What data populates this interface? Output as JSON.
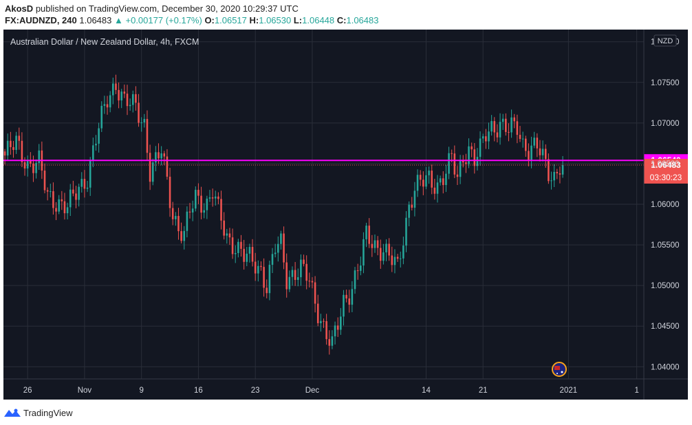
{
  "header": {
    "author": "AkosD",
    "published": "published on TradingView.com, December 30, 2020 10:29:37 UTC",
    "symbol": "FX:AUDNZD, 240",
    "last": "1.06483",
    "change_arrow": "▲",
    "change": "+0.00177 (+0.17%)",
    "o_label": "O:",
    "o": "1.06517",
    "h_label": "H:",
    "h": "1.06530",
    "l_label": "L:",
    "l": "1.06448",
    "c_label": "C:",
    "c": "1.06483"
  },
  "footer": {
    "brand": "TradingView",
    "logo_icon": "tradingview-logo-icon"
  },
  "chart_data": {
    "type": "candlestick",
    "title": "Australian Dollar / New Zealand Dollar, 4h, FXCM",
    "currency_badge": "NZD",
    "ylim": [
      1.0385,
      1.0815
    ],
    "y_ticks": [
      "1.04000",
      "1.04500",
      "1.05000",
      "1.05500",
      "1.06000",
      "1.06500",
      "1.07000",
      "1.07500",
      "1.08000"
    ],
    "x_ticks": [
      {
        "label": "26",
        "idx": 8
      },
      {
        "label": "Nov",
        "idx": 28
      },
      {
        "label": "9",
        "idx": 48
      },
      {
        "label": "16",
        "idx": 68
      },
      {
        "label": "23",
        "idx": 88
      },
      {
        "label": "Dec",
        "idx": 108
      },
      {
        "label": "14",
        "idx": 148
      },
      {
        "label": "21",
        "idx": 168
      },
      {
        "label": "2021",
        "idx": 198
      },
      {
        "label": "1",
        "idx": 222
      }
    ],
    "horizontal_line": {
      "value": 1.0654,
      "label": "1.06540",
      "color": "#ff00ff"
    },
    "current_price": {
      "value": 1.06483,
      "label": "1.06483",
      "countdown": "03:30:23"
    },
    "visible_slots": 225,
    "colors": {
      "up": "#26a69a",
      "down": "#ef5350",
      "background": "#131722",
      "grid": "#2a2e39",
      "axis_text": "#d1d4dc"
    },
    "path": [
      [
        0,
        1.066
      ],
      [
        4,
        1.0675
      ],
      [
        8,
        1.065
      ],
      [
        12,
        1.065
      ],
      [
        15,
        1.061
      ],
      [
        18,
        1.0605
      ],
      [
        22,
        1.0595
      ],
      [
        26,
        1.062
      ],
      [
        29,
        1.0635
      ],
      [
        32,
        1.068
      ],
      [
        36,
        1.073
      ],
      [
        39,
        1.075
      ],
      [
        42,
        1.0725
      ],
      [
        46,
        1.072
      ],
      [
        49,
        1.07
      ],
      [
        51,
        1.064
      ],
      [
        53,
        1.065
      ],
      [
        55,
        1.0665
      ],
      [
        57,
        1.063
      ],
      [
        59,
        1.059
      ],
      [
        61,
        1.057
      ],
      [
        63,
        1.056
      ],
      [
        65,
        1.059
      ],
      [
        67,
        1.061
      ],
      [
        69,
        1.0605
      ],
      [
        71,
        1.06
      ],
      [
        73,
        1.0615
      ],
      [
        75,
        1.059
      ],
      [
        78,
        1.056
      ],
      [
        81,
        1.055
      ],
      [
        84,
        1.0535
      ],
      [
        87,
        1.053
      ],
      [
        90,
        1.052
      ],
      [
        92,
        1.05
      ],
      [
        95,
        1.0545
      ],
      [
        97,
        1.055
      ],
      [
        99,
        1.051
      ],
      [
        101,
        1.0515
      ],
      [
        104,
        1.052
      ],
      [
        107,
        1.0505
      ],
      [
        109,
        1.048
      ],
      [
        111,
        1.046
      ],
      [
        113,
        1.044
      ],
      [
        115,
        1.0425
      ],
      [
        117,
        1.045
      ],
      [
        119,
        1.048
      ],
      [
        122,
        1.05
      ],
      [
        125,
        1.053
      ],
      [
        127,
        1.056
      ],
      [
        130,
        1.055
      ],
      [
        133,
        1.0545
      ],
      [
        136,
        1.053
      ],
      [
        138,
        1.052
      ],
      [
        140,
        1.056
      ],
      [
        142,
        1.06
      ],
      [
        144,
        1.062
      ],
      [
        146,
        1.0625
      ],
      [
        149,
        1.063
      ],
      [
        152,
        1.0625
      ],
      [
        155,
        1.064
      ],
      [
        157,
        1.0655
      ],
      [
        159,
        1.063
      ],
      [
        161,
        1.066
      ],
      [
        163,
        1.067
      ],
      [
        165,
        1.0655
      ],
      [
        167,
        1.0665
      ],
      [
        169,
        1.0685
      ],
      [
        171,
        1.0695
      ],
      [
        174,
        1.07
      ],
      [
        177,
        1.069
      ],
      [
        180,
        1.0695
      ],
      [
        182,
        1.0675
      ],
      [
        184,
        1.067
      ],
      [
        187,
        1.067
      ],
      [
        189,
        1.0655
      ],
      [
        191,
        1.064
      ],
      [
        193,
        1.0635
      ],
      [
        195,
        1.065
      ],
      [
        196,
        1.06483
      ]
    ]
  }
}
